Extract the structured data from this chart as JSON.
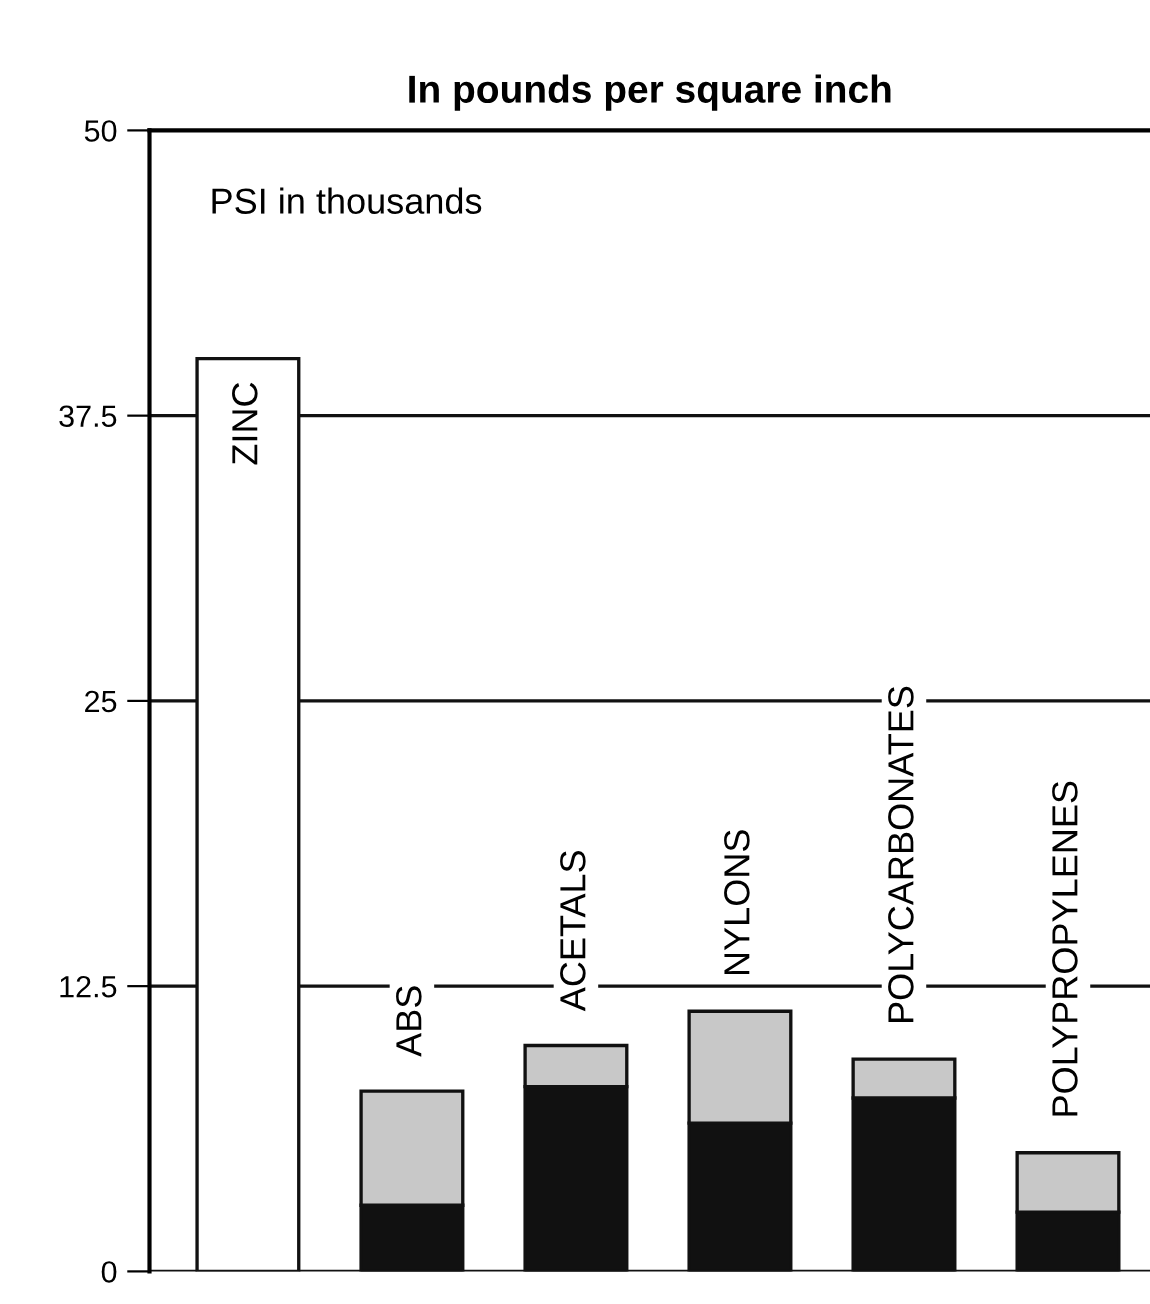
{
  "chart_data": {
    "type": "bar",
    "title": "In pounds per square inch",
    "annotations": [
      "PSI in thousands"
    ],
    "categories": [
      "ZINC",
      "ABS",
      "ACETALS",
      "NYLONS",
      "POLYCARBONATES",
      "POLYPROPYLENES"
    ],
    "stacked": true,
    "series": [
      {
        "colors": [
          "#ffffff",
          "#111111",
          "#111111",
          "#111111",
          "#111111",
          "#111111"
        ],
        "values": [
          40,
          2.9,
          8.1,
          6.5,
          7.6,
          2.6
        ]
      },
      {
        "color": "#c8c8c8",
        "values": [
          null,
          5.0,
          1.8,
          4.9,
          1.7,
          2.6
        ]
      }
    ],
    "ylim": [
      0,
      50
    ],
    "yticks": [
      0,
      12.5,
      25,
      37.5,
      50
    ],
    "grid": "y",
    "tick_labels": "y"
  }
}
